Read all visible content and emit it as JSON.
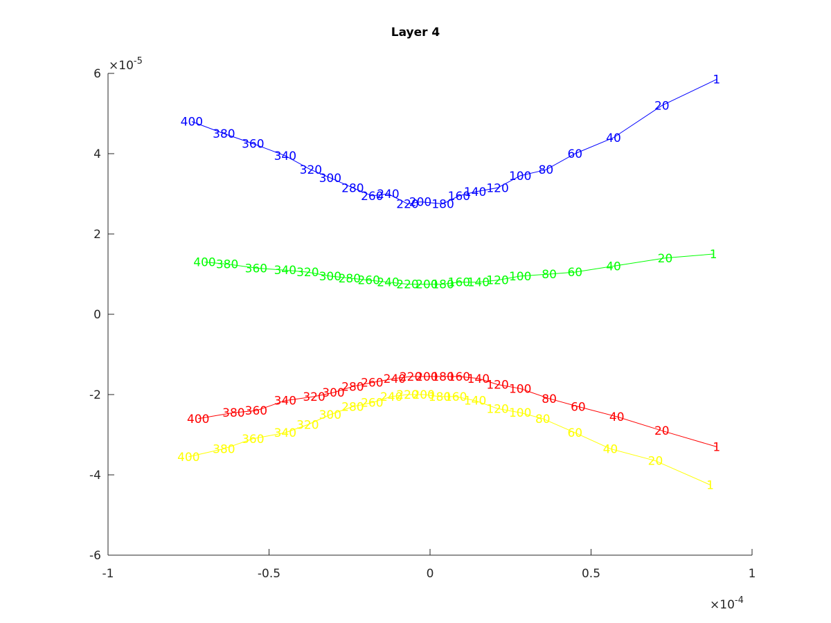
{
  "chart_data": {
    "type": "line",
    "title": "Layer 4",
    "xlabel": "",
    "ylabel": "",
    "xlim": [
      -1,
      1
    ],
    "ylim": [
      -6,
      6
    ],
    "x_exponent": {
      "base": "10",
      "power": "-4"
    },
    "y_exponent": {
      "base": "10",
      "power": "-5"
    },
    "x_ticks": [
      -1,
      -0.5,
      0,
      0.5,
      1
    ],
    "x_tick_labels": [
      "-1",
      "-0.5",
      "0",
      "0.5",
      "1"
    ],
    "y_ticks": [
      -6,
      -4,
      -2,
      0,
      2,
      4,
      6
    ],
    "y_tick_labels": [
      "-6",
      "-4",
      "-2",
      "0",
      "2",
      "4",
      "6"
    ],
    "grid": false,
    "series": [
      {
        "color": "#0000ff",
        "points": [
          {
            "label": "1",
            "x": 0.89,
            "y": 5.85
          },
          {
            "label": "20",
            "x": 0.72,
            "y": 5.2
          },
          {
            "label": "40",
            "x": 0.57,
            "y": 4.4
          },
          {
            "label": "60",
            "x": 0.45,
            "y": 4.0
          },
          {
            "label": "80",
            "x": 0.36,
            "y": 3.6
          },
          {
            "label": "100",
            "x": 0.28,
            "y": 3.45
          },
          {
            "label": "120",
            "x": 0.21,
            "y": 3.15
          },
          {
            "label": "140",
            "x": 0.14,
            "y": 3.05
          },
          {
            "label": "160",
            "x": 0.09,
            "y": 2.95
          },
          {
            "label": "180",
            "x": 0.04,
            "y": 2.75
          },
          {
            "label": "200",
            "x": -0.03,
            "y": 2.8
          },
          {
            "label": "220",
            "x": -0.07,
            "y": 2.75
          },
          {
            "label": "240",
            "x": -0.13,
            "y": 3.0
          },
          {
            "label": "260",
            "x": -0.18,
            "y": 2.95
          },
          {
            "label": "280",
            "x": -0.24,
            "y": 3.15
          },
          {
            "label": "300",
            "x": -0.31,
            "y": 3.4
          },
          {
            "label": "320",
            "x": -0.37,
            "y": 3.6
          },
          {
            "label": "340",
            "x": -0.45,
            "y": 3.95
          },
          {
            "label": "360",
            "x": -0.55,
            "y": 4.25
          },
          {
            "label": "380",
            "x": -0.64,
            "y": 4.5
          },
          {
            "label": "400",
            "x": -0.74,
            "y": 4.8
          }
        ]
      },
      {
        "color": "#00ff00",
        "points": [
          {
            "label": "1",
            "x": 0.88,
            "y": 1.5
          },
          {
            "label": "20",
            "x": 0.73,
            "y": 1.4
          },
          {
            "label": "40",
            "x": 0.57,
            "y": 1.2
          },
          {
            "label": "60",
            "x": 0.45,
            "y": 1.05
          },
          {
            "label": "80",
            "x": 0.37,
            "y": 1.0
          },
          {
            "label": "100",
            "x": 0.28,
            "y": 0.95
          },
          {
            "label": "120",
            "x": 0.21,
            "y": 0.85
          },
          {
            "label": "140",
            "x": 0.15,
            "y": 0.8
          },
          {
            "label": "160",
            "x": 0.09,
            "y": 0.8
          },
          {
            "label": "180",
            "x": 0.04,
            "y": 0.75
          },
          {
            "label": "200",
            "x": -0.01,
            "y": 0.75
          },
          {
            "label": "220",
            "x": -0.07,
            "y": 0.75
          },
          {
            "label": "240",
            "x": -0.13,
            "y": 0.8
          },
          {
            "label": "260",
            "x": -0.19,
            "y": 0.85
          },
          {
            "label": "280",
            "x": -0.25,
            "y": 0.9
          },
          {
            "label": "300",
            "x": -0.31,
            "y": 0.95
          },
          {
            "label": "320",
            "x": -0.38,
            "y": 1.05
          },
          {
            "label": "340",
            "x": -0.45,
            "y": 1.1
          },
          {
            "label": "360",
            "x": -0.54,
            "y": 1.15
          },
          {
            "label": "380",
            "x": -0.63,
            "y": 1.25
          },
          {
            "label": "400",
            "x": -0.7,
            "y": 1.3
          }
        ]
      },
      {
        "color": "#ff0000",
        "points": [
          {
            "label": "1",
            "x": 0.89,
            "y": -3.3
          },
          {
            "label": "20",
            "x": 0.72,
            "y": -2.9
          },
          {
            "label": "40",
            "x": 0.58,
            "y": -2.55
          },
          {
            "label": "60",
            "x": 0.46,
            "y": -2.3
          },
          {
            "label": "80",
            "x": 0.37,
            "y": -2.1
          },
          {
            "label": "100",
            "x": 0.28,
            "y": -1.85
          },
          {
            "label": "120",
            "x": 0.21,
            "y": -1.75
          },
          {
            "label": "140",
            "x": 0.15,
            "y": -1.6
          },
          {
            "label": "160",
            "x": 0.09,
            "y": -1.55
          },
          {
            "label": "180",
            "x": 0.04,
            "y": -1.55
          },
          {
            "label": "200",
            "x": -0.01,
            "y": -1.55
          },
          {
            "label": "220",
            "x": -0.06,
            "y": -1.55
          },
          {
            "label": "240",
            "x": -0.11,
            "y": -1.6
          },
          {
            "label": "260",
            "x": -0.18,
            "y": -1.7
          },
          {
            "label": "280",
            "x": -0.24,
            "y": -1.8
          },
          {
            "label": "300",
            "x": -0.3,
            "y": -1.95
          },
          {
            "label": "320",
            "x": -0.36,
            "y": -2.05
          },
          {
            "label": "340",
            "x": -0.45,
            "y": -2.15
          },
          {
            "label": "360",
            "x": -0.54,
            "y": -2.4
          },
          {
            "label": "380",
            "x": -0.61,
            "y": -2.45
          },
          {
            "label": "400",
            "x": -0.72,
            "y": -2.6
          }
        ]
      },
      {
        "color": "#ffff00",
        "points": [
          {
            "label": "1",
            "x": 0.87,
            "y": -4.25
          },
          {
            "label": "20",
            "x": 0.7,
            "y": -3.65
          },
          {
            "label": "40",
            "x": 0.56,
            "y": -3.35
          },
          {
            "label": "60",
            "x": 0.45,
            "y": -2.95
          },
          {
            "label": "80",
            "x": 0.35,
            "y": -2.6
          },
          {
            "label": "100",
            "x": 0.28,
            "y": -2.45
          },
          {
            "label": "120",
            "x": 0.21,
            "y": -2.35
          },
          {
            "label": "140",
            "x": 0.14,
            "y": -2.15
          },
          {
            "label": "160",
            "x": 0.08,
            "y": -2.05
          },
          {
            "label": "180",
            "x": 0.03,
            "y": -2.05
          },
          {
            "label": "200",
            "x": -0.02,
            "y": -2.0
          },
          {
            "label": "220",
            "x": -0.07,
            "y": -2.0
          },
          {
            "label": "240",
            "x": -0.12,
            "y": -2.05
          },
          {
            "label": "260",
            "x": -0.18,
            "y": -2.2
          },
          {
            "label": "280",
            "x": -0.24,
            "y": -2.3
          },
          {
            "label": "300",
            "x": -0.31,
            "y": -2.5
          },
          {
            "label": "320",
            "x": -0.38,
            "y": -2.75
          },
          {
            "label": "340",
            "x": -0.45,
            "y": -2.95
          },
          {
            "label": "360",
            "x": -0.55,
            "y": -3.1
          },
          {
            "label": "380",
            "x": -0.64,
            "y": -3.35
          },
          {
            "label": "400",
            "x": -0.75,
            "y": -3.55
          }
        ]
      }
    ]
  }
}
